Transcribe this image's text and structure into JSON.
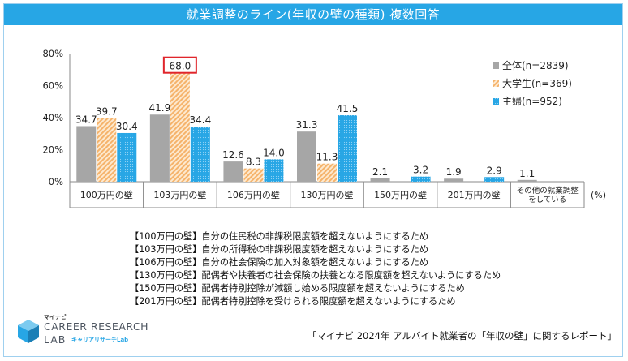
{
  "header": {
    "title": "就業調整のライン(年収の壁の種類) 複数回答"
  },
  "chart_data": {
    "type": "bar",
    "categories": [
      "100万円の壁",
      "103万円の壁",
      "106万円の壁",
      "130万円の壁",
      "150万円の壁",
      "201万円の壁",
      "その他の就業調整\nをしている"
    ],
    "series": [
      {
        "name": "全体(n=2839)",
        "values": [
          34.7,
          41.9,
          12.6,
          31.3,
          2.1,
          1.9,
          1.1
        ],
        "labels": [
          "34.7",
          "41.9",
          "12.6",
          "31.3",
          "2.1",
          "1.9",
          "1.1"
        ],
        "color": "#a6a6a6",
        "pattern": "solid"
      },
      {
        "name": "大学生(n=369)",
        "values": [
          39.7,
          68.0,
          8.3,
          11.3,
          null,
          null,
          null
        ],
        "labels": [
          "39.7",
          "68.0",
          "8.3",
          "11.3",
          "-",
          "-",
          "-"
        ],
        "color": "#f5b36b",
        "pattern": "hatch"
      },
      {
        "name": "主婦(n=952)",
        "values": [
          30.4,
          34.4,
          14.0,
          41.5,
          3.2,
          2.9,
          null
        ],
        "labels": [
          "30.4",
          "34.4",
          "14.0",
          "41.5",
          "3.2",
          "2.9",
          "-"
        ],
        "color": "#27a6e5",
        "pattern": "dots"
      }
    ],
    "yticks": [
      "0%",
      "20%",
      "40%",
      "60%",
      "80%"
    ],
    "ylim": [
      0,
      80
    ],
    "unit": "(%)",
    "highlight": {
      "series": 1,
      "category": 1,
      "color": "#e0252b"
    },
    "legend_position": "top-right"
  },
  "notes": [
    "【100万円の壁】自分の住民税の非課税限度額を超えないようにするため",
    "【103万円の壁】自分の所得税の非課税限度額を超えないようにするため",
    "【106万円の壁】自分の社会保険の加入対象額を超えないようにするため",
    "【130万円の壁】配偶者や扶養者の社会保険の扶養となる限度額を超えないようにするため",
    "【150万円の壁】配偶者特別控除が減額し始める限度額を超えないようにするため",
    "【201万円の壁】配偶者特別控除を受けられる限度額を超えないようにするため"
  ],
  "logo": {
    "sub": "マイナビ",
    "line1": "CAREER RESEARCH",
    "line2": "LAB",
    "line2b": "キャリアリサーチLab"
  },
  "source": "「マイナビ 2024年 アルバイト就業者の「年収の壁」に関するレポート」"
}
